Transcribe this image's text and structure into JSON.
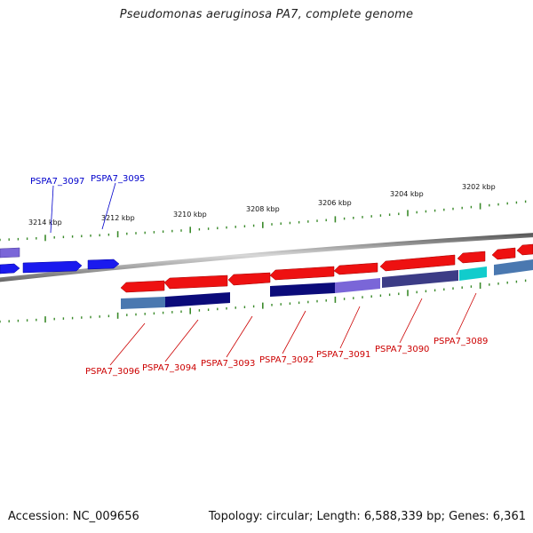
{
  "title": "Pseudomonas aeruginosa PA7, complete genome",
  "footer": {
    "accession": "Accession: NC_009656",
    "summary": "Topology: circular; Length: 6,588,339 bp; Genes: 6,361"
  },
  "scale_labels": [
    "3214 kbp",
    "3212 kbp",
    "3210 kbp",
    "3208 kbp",
    "3206 kbp",
    "3204 kbp",
    "3202 kbp"
  ],
  "top_labels": [
    "PSPA7_3097",
    "PSPA7_3095"
  ],
  "bottom_labels": [
    "PSPA7_3096",
    "PSPA7_3094",
    "PSPA7_3093",
    "PSPA7_3092",
    "PSPA7_3091",
    "PSPA7_3090",
    "PSPA7_3089"
  ],
  "colors": {
    "forward_gene": "#1a1aee",
    "reverse_gene": "#ee1111",
    "backbone": "#8c8c8c",
    "ticks": "#3a8a2a",
    "top_label": "#0000cc",
    "bottom_label": "#cc0000",
    "cat_navy": "#0b0b7a",
    "cat_steel": "#4a78b0",
    "cat_slate": "#3c3c86",
    "cat_lavender": "#7a66d8",
    "cat_cyan": "#11cccc"
  }
}
